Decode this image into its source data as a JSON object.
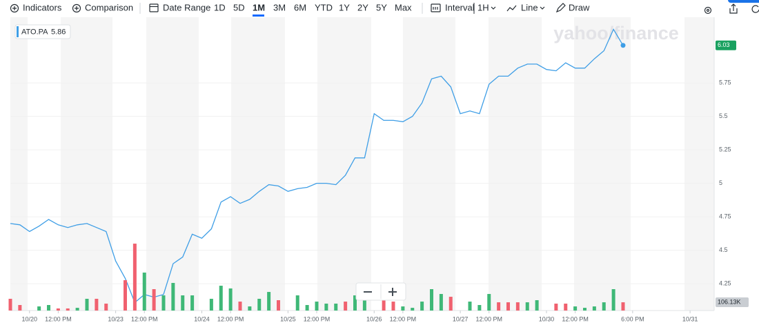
{
  "toolbar": {
    "indicators": "Indicators",
    "comparison": "Comparison",
    "date_range": "Date Range",
    "ranges": [
      "1D",
      "5D",
      "1M",
      "3M",
      "6M",
      "YTD",
      "1Y",
      "2Y",
      "5Y",
      "Max"
    ],
    "active_range": "1M",
    "interval": "Interval",
    "interval_value": "1H",
    "line": "Line",
    "draw": "Draw"
  },
  "chart_data": {
    "type": "line",
    "symbol": "ATO.PA",
    "legend_value": 5.86,
    "watermark": "yahoo/finance",
    "categories": [
      null,
      null,
      "10/20",
      null,
      null,
      "12:00 PM",
      null,
      null,
      null,
      null,
      null,
      "10/23",
      null,
      null,
      "12:00 PM",
      null,
      null,
      null,
      null,
      null,
      "10/24",
      null,
      null,
      "12:00 PM",
      null,
      null,
      null,
      null,
      null,
      "10/25",
      null,
      null,
      "12:00 PM",
      null,
      null,
      null,
      null,
      null,
      "10/26",
      null,
      null,
      "12:00 PM",
      null,
      null,
      null,
      null,
      null,
      "10/27",
      null,
      null,
      "12:00 PM",
      null,
      null,
      null,
      null,
      null,
      "10/30",
      null,
      null,
      "12:00 PM",
      null,
      null,
      null,
      null,
      null,
      "6:00 PM",
      null,
      null,
      null,
      null,
      null,
      "10/31",
      null,
      null
    ],
    "series": [
      {
        "name": "ATO.PA",
        "color": "#3e9ee6",
        "values": [
          4.7,
          4.69,
          4.64,
          4.68,
          4.73,
          4.69,
          4.67,
          4.69,
          4.7,
          4.67,
          4.64,
          4.42,
          4.29,
          4.11,
          4.17,
          4.15,
          4.17,
          4.4,
          4.45,
          4.62,
          4.59,
          4.66,
          4.86,
          4.9,
          4.85,
          4.88,
          4.94,
          4.99,
          4.98,
          4.94,
          4.96,
          4.97,
          5.0,
          5.0,
          4.99,
          5.06,
          5.19,
          5.19,
          5.52,
          5.47,
          5.47,
          5.46,
          5.5,
          5.6,
          5.78,
          5.8,
          5.72,
          5.52,
          5.54,
          5.52,
          5.74,
          5.8,
          5.8,
          5.86,
          5.89,
          5.89,
          5.85,
          5.84,
          5.9,
          5.86,
          5.86,
          5.93,
          5.99,
          6.15,
          6.03,
          null,
          null,
          null,
          null,
          null,
          null,
          null,
          null,
          null
        ],
        "value_labels": [
          null,
          null,
          null,
          null,
          null,
          null,
          null,
          null,
          null,
          null,
          null,
          null,
          null,
          null,
          null,
          null,
          null,
          null,
          null,
          null,
          null,
          null,
          null,
          null,
          null,
          null,
          null,
          null,
          null,
          null,
          null,
          null,
          null,
          null,
          null,
          null,
          null,
          null,
          null,
          null,
          null,
          null,
          null,
          null,
          null,
          null,
          null,
          null,
          null,
          null,
          null,
          null,
          null,
          null,
          null,
          null,
          null,
          null,
          null,
          null,
          null,
          null,
          null,
          null,
          "6.03",
          null,
          null,
          null,
          null,
          null,
          null,
          null,
          null,
          null
        ],
        "label_color": "#1aa160"
      },
      {
        "name": "Volume",
        "axis": "y2",
        "values": [
          151000,
          71000,
          null,
          53000,
          71000,
          27000,
          27000,
          35000,
          151000,
          151000,
          89000,
          null,
          390000,
          860000,
          488000,
          275000,
          195000,
          355000,
          195000,
          195000,
          null,
          151000,
          319000,
          284000,
          115000,
          53000,
          151000,
          239000,
          133000,
          null,
          195000,
          71000,
          115000,
          89000,
          89000,
          115000,
          195000,
          169000,
          null,
          133000,
          115000,
          53000,
          35000,
          115000,
          275000,
          213000,
          177000,
          null,
          115000,
          71000,
          213000,
          106000,
          106000,
          106000,
          106000,
          133000,
          null,
          89000,
          89000,
          53000,
          35000,
          53000,
          106000,
          275000,
          106130,
          null,
          null,
          null,
          null,
          null,
          null,
          null,
          null,
          null
        ],
        "value_labels": [
          null,
          null,
          null,
          null,
          null,
          null,
          null,
          null,
          null,
          null,
          null,
          null,
          null,
          null,
          null,
          null,
          null,
          null,
          null,
          null,
          null,
          null,
          null,
          null,
          null,
          null,
          null,
          null,
          null,
          null,
          null,
          null,
          null,
          null,
          null,
          null,
          null,
          null,
          null,
          null,
          null,
          null,
          null,
          null,
          null,
          null,
          null,
          null,
          null,
          null,
          null,
          null,
          null,
          null,
          null,
          null,
          null,
          null,
          null,
          null,
          null,
          null,
          null,
          null,
          "106.13K",
          null,
          null,
          null,
          null,
          null,
          null,
          null,
          null,
          null
        ],
        "colors": [
          "#f0616f",
          "#f0616f",
          null,
          "#3fb877",
          "#3fb877",
          "#f0616f",
          "#f0616f",
          "#3fb877",
          "#3fb877",
          "#f0616f",
          "#f0616f",
          null,
          "#f0616f",
          "#f0616f",
          "#3fb877",
          "#f0616f",
          "#3fb877",
          "#3fb877",
          "#3fb877",
          "#3fb877",
          null,
          "#3fb877",
          "#3fb877",
          "#3fb877",
          "#f0616f",
          "#3fb877",
          "#3fb877",
          "#3fb877",
          "#f0616f",
          null,
          "#3fb877",
          "#3fb877",
          "#3fb877",
          "#3fb877",
          "#3fb877",
          "#f0616f",
          "#3fb877",
          "#3fb877",
          null,
          "#f0616f",
          "#f0616f",
          "#3fb877",
          "#3fb877",
          "#3fb877",
          "#3fb877",
          "#3fb877",
          "#f0616f",
          null,
          "#3fb877",
          "#3fb877",
          "#3fb877",
          "#f0616f",
          "#f0616f",
          "#f0616f",
          "#3fb877",
          "#3fb877",
          null,
          "#f0616f",
          "#f0616f",
          "#3fb877",
          "#3fb877",
          "#3fb877",
          "#3fb877",
          "#3fb877",
          "#f0616f",
          null,
          null,
          null,
          null,
          null,
          null,
          null,
          null,
          null
        ],
        "label_color": "#c9cdd2"
      }
    ],
    "ylim": [
      4.05,
      6.24
    ],
    "yticks": [
      4.25,
      4.5,
      4.75,
      5,
      5.25,
      5.5,
      5.75
    ],
    "y2lim": [
      0,
      1100000
    ],
    "grid": true
  }
}
